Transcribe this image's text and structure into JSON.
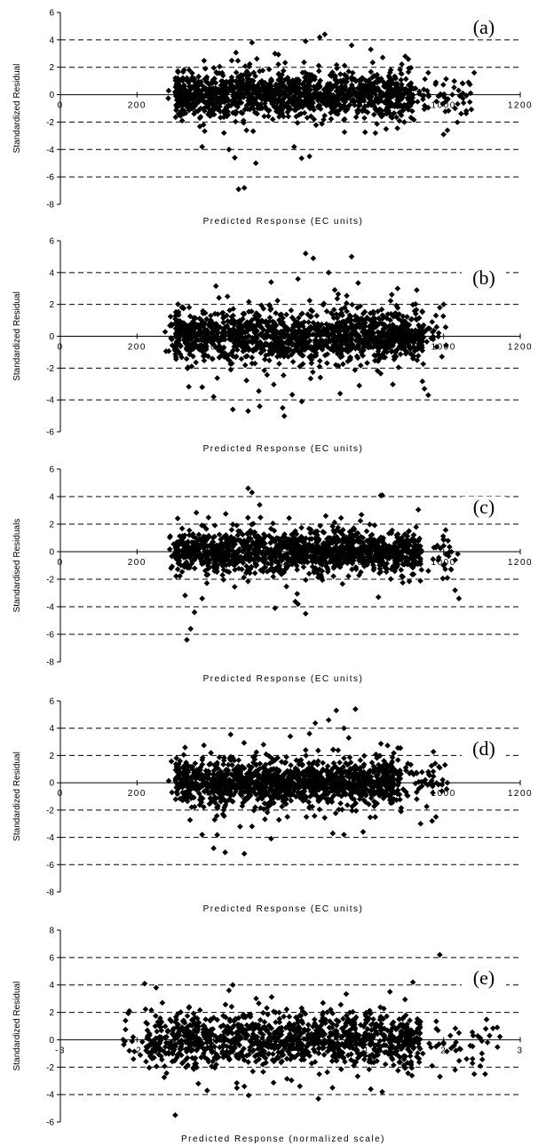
{
  "chart_data": [
    {
      "type": "scatter",
      "panel_label": "(a)",
      "xlabel": "Predicted Response (EC units)",
      "ylabel": "Standardized Residual",
      "xlim": [
        0,
        1200
      ],
      "ylim": [
        -8,
        6
      ],
      "x_ticks": [
        "0",
        "200",
        "400",
        "600",
        "800",
        "1000",
        "1200"
      ],
      "y_ticks": [
        "-8",
        "-6",
        "-4",
        "-2",
        "0",
        "2",
        "4",
        "6"
      ],
      "grid": "dashed horizontal",
      "marker_color": "#000000",
      "cloud": {
        "x_range": [
          280,
          1080
        ],
        "dense_x": [
          300,
          920
        ],
        "core_sd": 0.8,
        "n": 1400
      },
      "points": [
        [
          480,
          -6.8
        ],
        [
          465,
          -6.9
        ],
        [
          510,
          -5.0
        ],
        [
          455,
          -4.6
        ],
        [
          440,
          -4.0
        ],
        [
          650,
          -4.5
        ],
        [
          610,
          -3.8
        ],
        [
          370,
          -3.8
        ],
        [
          850,
          -2.5
        ],
        [
          1000,
          -2.9
        ],
        [
          1010,
          -2.6
        ],
        [
          1030,
          -1.0
        ],
        [
          1050,
          0.1
        ],
        [
          1065,
          0.9
        ],
        [
          1080,
          1.6
        ],
        [
          690,
          4.4
        ],
        [
          640,
          3.9
        ],
        [
          500,
          3.8
        ],
        [
          760,
          3.6
        ],
        [
          810,
          3.3
        ],
        [
          560,
          3.0
        ],
        [
          900,
          2.8
        ],
        [
          960,
          1.6
        ],
        [
          980,
          0.9
        ],
        [
          1000,
          0.0
        ]
      ]
    },
    {
      "type": "scatter",
      "panel_label": "(b)",
      "xlabel": "Predicted Response (EC units)",
      "ylabel": "Standardized Residual",
      "xlim": [
        0,
        1200
      ],
      "ylim": [
        -6,
        6
      ],
      "x_ticks": [
        "0",
        "200",
        "400",
        "600",
        "800",
        "1000",
        "1200"
      ],
      "y_ticks": [
        "-6",
        "-4",
        "-2",
        "0",
        "2",
        "4",
        "6"
      ],
      "grid": "dashed horizontal",
      "marker_color": "#000000",
      "cloud": {
        "x_range": [
          270,
          1010
        ],
        "dense_x": [
          300,
          950
        ],
        "core_sd": 0.8,
        "n": 1400
      },
      "points": [
        [
          640,
          5.2
        ],
        [
          660,
          4.9
        ],
        [
          760,
          5.0
        ],
        [
          700,
          4.0
        ],
        [
          550,
          3.4
        ],
        [
          620,
          3.6
        ],
        [
          450,
          -4.6
        ],
        [
          490,
          -4.7
        ],
        [
          520,
          -4.4
        ],
        [
          580,
          -4.5
        ],
        [
          630,
          -4.1
        ],
        [
          370,
          -3.2
        ],
        [
          400,
          -3.8
        ],
        [
          730,
          -3.6
        ],
        [
          780,
          -3.1
        ],
        [
          960,
          -3.7
        ],
        [
          950,
          -3.3
        ],
        [
          930,
          2.9
        ],
        [
          880,
          3.0
        ],
        [
          990,
          1.8
        ],
        [
          1000,
          2.0
        ],
        [
          980,
          1.3
        ],
        [
          970,
          0.9
        ],
        [
          960,
          0.5
        ],
        [
          900,
          -0.9
        ],
        [
          920,
          -1.4
        ]
      ]
    },
    {
      "type": "scatter",
      "panel_label": "(c)",
      "xlabel": "Predicted Response (EC units)",
      "ylabel": "Standardised Residuals",
      "xlim": [
        0,
        1200
      ],
      "ylim": [
        -8,
        6
      ],
      "x_ticks": [
        "0",
        "200",
        "400",
        "600",
        "800",
        "1000",
        "1200"
      ],
      "y_ticks": [
        "-8",
        "-6",
        "-4",
        "-2",
        "0",
        "2",
        "4",
        "6"
      ],
      "grid": "dashed horizontal",
      "marker_color": "#000000",
      "cloud": {
        "x_range": [
          280,
          1040
        ],
        "dense_x": [
          300,
          940
        ],
        "core_sd": 0.75,
        "n": 1400
      },
      "points": [
        [
          330,
          -6.4
        ],
        [
          340,
          -5.6
        ],
        [
          350,
          -4.4
        ],
        [
          370,
          -3.4
        ],
        [
          490,
          4.6
        ],
        [
          500,
          4.3
        ],
        [
          840,
          4.1
        ],
        [
          520,
          3.4
        ],
        [
          640,
          -4.5
        ],
        [
          620,
          -3.8
        ],
        [
          560,
          -4.1
        ],
        [
          830,
          -3.3
        ],
        [
          1000,
          -1.0
        ],
        [
          1020,
          -1.3
        ],
        [
          1030,
          -2.8
        ],
        [
          1040,
          -3.4
        ],
        [
          1030,
          -0.6
        ],
        [
          1000,
          0.9
        ],
        [
          980,
          0.3
        ],
        [
          1010,
          -1.9
        ],
        [
          960,
          -1.4
        ]
      ]
    },
    {
      "type": "scatter",
      "panel_label": "(d)",
      "xlabel": "Predicted Response (EC units)",
      "ylabel": "Standardized Residual",
      "xlim": [
        0,
        1200
      ],
      "ylim": [
        -8,
        6
      ],
      "x_ticks": [
        "0",
        "200",
        "400",
        "600",
        "800",
        "1000",
        "1200"
      ],
      "y_ticks": [
        "-8",
        "-6",
        "-4",
        "-2",
        "0",
        "2",
        "4",
        "6"
      ],
      "grid": "dashed horizontal",
      "marker_color": "#000000",
      "cloud": {
        "x_range": [
          270,
          1010
        ],
        "dense_x": [
          300,
          890
        ],
        "core_sd": 0.85,
        "n": 1400
      },
      "points": [
        [
          480,
          -5.2
        ],
        [
          430,
          -5.1
        ],
        [
          400,
          -4.8
        ],
        [
          370,
          -3.8
        ],
        [
          550,
          -4.1
        ],
        [
          500,
          -3.2
        ],
        [
          740,
          -3.8
        ],
        [
          790,
          -3.6
        ],
        [
          720,
          5.3
        ],
        [
          770,
          5.4
        ],
        [
          700,
          4.6
        ],
        [
          740,
          4.0
        ],
        [
          600,
          3.4
        ],
        [
          650,
          3.6
        ],
        [
          530,
          2.8
        ],
        [
          940,
          -3.0
        ],
        [
          970,
          -2.8
        ],
        [
          980,
          -2.5
        ],
        [
          960,
          0.8
        ],
        [
          990,
          1.1
        ],
        [
          1010,
          0.0
        ],
        [
          930,
          -1.2
        ]
      ]
    },
    {
      "type": "scatter",
      "panel_label": "(e)",
      "xlabel": "Predicted Response (normalized scale)",
      "ylabel": "Standardized Residual",
      "xlim": [
        -3,
        3
      ],
      "ylim": [
        -6,
        8
      ],
      "x_ticks": [
        "-3",
        "-2",
        "-1",
        "0",
        "1",
        "2",
        "3"
      ],
      "y_ticks": [
        "-6",
        "-4",
        "-2",
        "0",
        "2",
        "4",
        "6",
        "8"
      ],
      "grid": "dashed horizontal",
      "marker_color": "#000000",
      "cloud": {
        "x_range": [
          -2.2,
          2.8
        ],
        "dense_x": [
          -1.9,
          1.7
        ],
        "core_sd": 0.95,
        "n": 1200
      },
      "points": [
        [
          1.95,
          6.2
        ],
        [
          -1.9,
          4.1
        ],
        [
          -1.75,
          3.8
        ],
        [
          -0.75,
          4.0
        ],
        [
          -0.8,
          3.6
        ],
        [
          1.6,
          4.2
        ],
        [
          1.3,
          3.5
        ],
        [
          -2.1,
          2.1
        ],
        [
          -2.15,
          1.4
        ],
        [
          -2.05,
          0.2
        ],
        [
          -2.1,
          -0.8
        ],
        [
          -1.2,
          -3.2
        ],
        [
          -0.6,
          -3.4
        ],
        [
          0.55,
          -3.5
        ],
        [
          1.2,
          -3.8
        ],
        [
          1.05,
          -3.6
        ],
        [
          2.4,
          -2.5
        ],
        [
          2.5,
          -1.0
        ],
        [
          2.55,
          0.8
        ],
        [
          2.7,
          0.9
        ],
        [
          2.2,
          0.5
        ],
        [
          2.3,
          -1.4
        ],
        [
          2.6,
          0.3
        ],
        [
          2.0,
          -0.3
        ],
        [
          1.85,
          -1.9
        ],
        [
          2.15,
          -2.2
        ]
      ]
    }
  ]
}
